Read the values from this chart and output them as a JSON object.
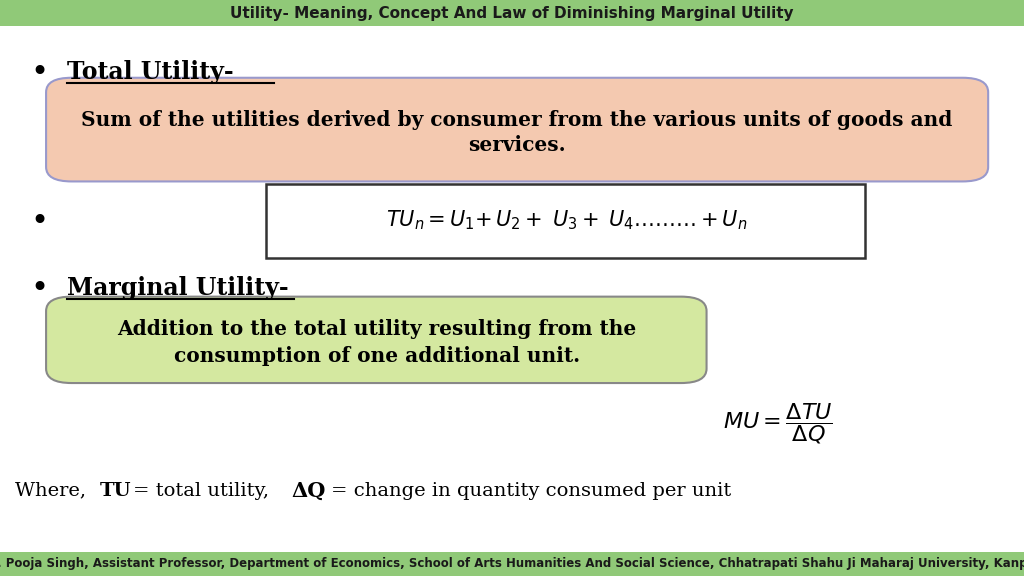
{
  "title": "Utility- Meaning, Concept And Law of Diminishing Marginal Utility",
  "title_bg": "#90c978",
  "title_color": "#1a1a1a",
  "title_fontsize": 11,
  "bg_color": "#ffffff",
  "footer": "Dr. Pooja Singh, Assistant Professor, Department of Economics, School of Arts Humanities And Social Science, Chhatrapati Shahu Ji Maharaj University, Kanpur",
  "footer_bg": "#90c978",
  "footer_color": "#1a1a1a",
  "footer_fontsize": 8.5,
  "total_utility_label": "Total Utility-",
  "total_utility_box_text1": "Sum of the utilities derived by consumer from the various units of goods and",
  "total_utility_box_text2": "services.",
  "total_utility_box_bg": "#f4c9b0",
  "total_utility_box_border": "#9999cc",
  "formula_box_border": "#333333",
  "marginal_utility_label": "Marginal Utility-",
  "marginal_box_text1": "Addition to the total utility resulting from the",
  "marginal_box_text2": "consumption of one additional unit.",
  "marginal_box_bg": "#d4e8a0",
  "marginal_box_border": "#888888"
}
